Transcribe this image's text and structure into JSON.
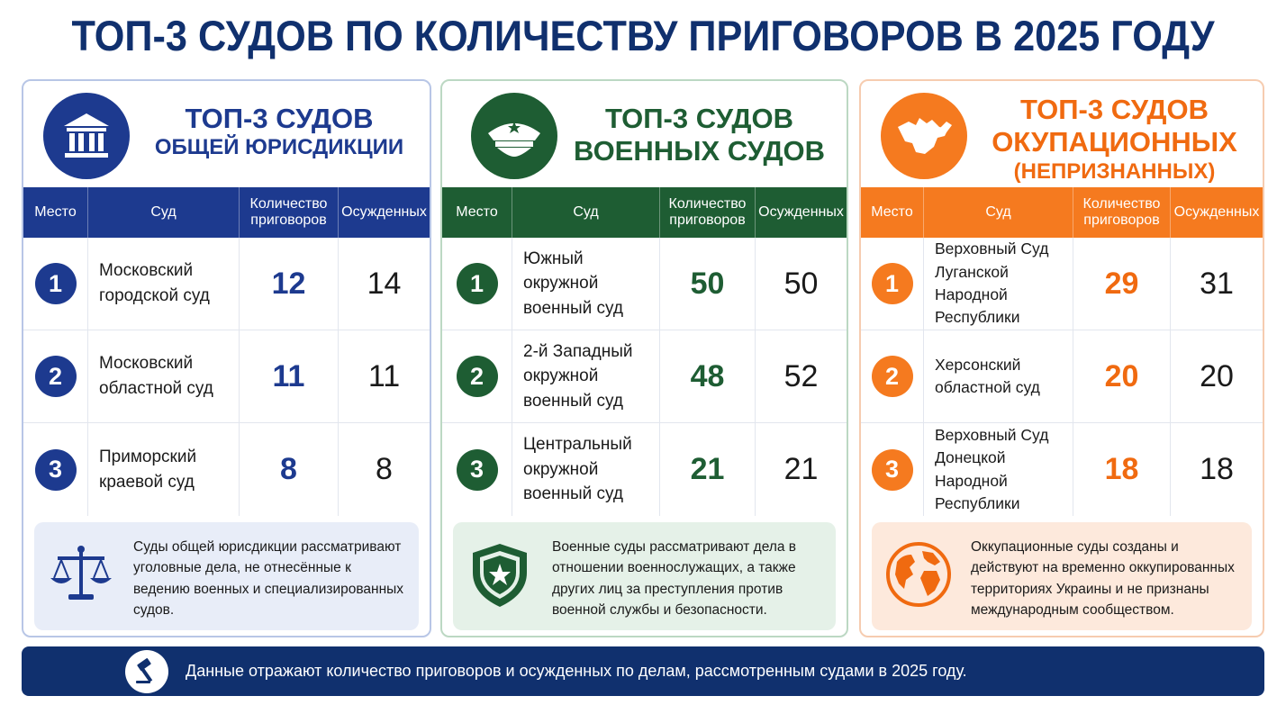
{
  "title": "ТОП-3 СУДОВ ПО КОЛИЧЕСТВУ ПРИГОВОРОВ В 2025 ГОДУ",
  "colors": {
    "navy": "#10306e",
    "blue": "#1d3a8f",
    "green": "#1e5d33",
    "orange": "#f57a1f"
  },
  "panels": [
    {
      "title_line1": "ТОП-3 СУДОВ",
      "title_line2": "ОБЩЕЙ ЮРИСДИКЦИИ",
      "title_line3": "",
      "icon": "courthouse-icon",
      "headers": {
        "place": "Место",
        "court": "Суд",
        "count": "Количество приговоров",
        "convicted": "Осужденных"
      },
      "rows": [
        {
          "rank": "1",
          "court": "Московский городской суд",
          "count": "12",
          "convicted": "14"
        },
        {
          "rank": "2",
          "court": "Московский областной суд",
          "count": "11",
          "convicted": "11"
        },
        {
          "rank": "3",
          "court": "Приморский краевой суд",
          "count": "8",
          "convicted": "8"
        }
      ],
      "note_icon": "scales-icon",
      "note": "Суды общей юрисдикции рассматривают уголовные дела, не отнесённые к ведению военных и специализированных судов."
    },
    {
      "title_line1": "ТОП-3 СУДОВ",
      "title_line2": "ВОЕННЫХ СУДОВ",
      "title_line3": "",
      "icon": "military-cap-icon",
      "headers": {
        "place": "Место",
        "court": "Суд",
        "count": "Количество приговоров",
        "convicted": "Осужденных"
      },
      "rows": [
        {
          "rank": "1",
          "court": "Южный окружной военный суд",
          "count": "50",
          "convicted": "50"
        },
        {
          "rank": "2",
          "court": "2-й Западный окружной военный суд",
          "count": "48",
          "convicted": "52"
        },
        {
          "rank": "3",
          "court": "Центральный окружной военный суд",
          "count": "21",
          "convicted": "21"
        }
      ],
      "note_icon": "shield-star-icon",
      "note": "Военные суды рассматривают дела в отношении военнослужащих, а также других лиц за преступления против военной службы и безопасности."
    },
    {
      "title_line1": "ТОП-3 СУДОВ",
      "title_line2": "ОКУПАЦИОННЫХ",
      "title_line3": "(НЕПРИЗНАННЫХ)",
      "icon": "crimea-map-icon",
      "headers": {
        "place": "Место",
        "court": "Суд",
        "count": "Количество приговоров",
        "convicted": "Осужденных"
      },
      "rows": [
        {
          "rank": "1",
          "court": "Верховный Суд Луганской Народной Республики",
          "count": "29",
          "convicted": "31"
        },
        {
          "rank": "2",
          "court": "Херсонский областной суд",
          "count": "20",
          "convicted": "20"
        },
        {
          "rank": "3",
          "court": "Верховный Суд Донецкой Народной Республики",
          "count": "18",
          "convicted": "18"
        }
      ],
      "note_icon": "globe-icon",
      "note": "Оккупационные суды созданы и действуют на временно оккупированных территориях Украины и не признаны международным сообществом."
    }
  ],
  "footer": {
    "icon": "gavel-icon",
    "text": "Данные отражают количество приговоров и осужденных по делам, рассмотренным судами в 2025 году."
  }
}
